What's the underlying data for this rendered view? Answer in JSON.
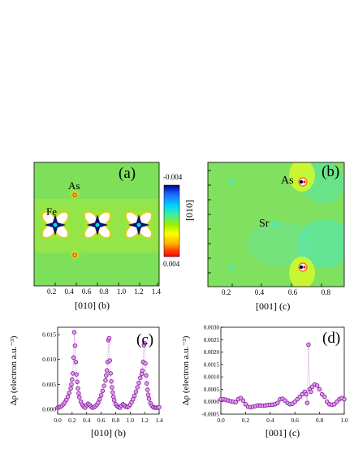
{
  "panel_a": {
    "letter": "(a)",
    "xlabel": "[010] (b)",
    "xticks": [
      "0.2",
      "0.4",
      "0.6",
      "0.8",
      "1.0",
      "1.2",
      "1.4"
    ],
    "atom_labels": [
      "As",
      "Fe"
    ],
    "colorbar": {
      "top_label": "-0.004",
      "bottom_label": "0.004",
      "colors": [
        "#00008b",
        "#2060ff",
        "#00d0ff",
        "#40f0a0",
        "#9af000",
        "#ffff00",
        "#ffb000",
        "#ff4000",
        "#ff0000"
      ]
    }
  },
  "panel_b": {
    "letter": "(b)",
    "xlabel": "[001]  (c)",
    "ylabel": "[010]",
    "xticks": [
      "0.2",
      "0.4",
      "0.6",
      "0.8"
    ],
    "atom_labels": [
      "As",
      "Sr"
    ]
  },
  "chart_data": [
    {
      "type": "scatter",
      "panel": "(c)",
      "xlabel": "[010] (b)",
      "ylabel": "Δρ (electron a.u.⁻³)",
      "xlim": [
        0.0,
        1.4
      ],
      "ylim": [
        -0.001,
        0.0165
      ],
      "xticks": [
        "0.0",
        "0.2",
        "0.4",
        "0.6",
        "0.8",
        "1.0",
        "1.2",
        "1.4"
      ],
      "yticks": [
        "0.000",
        "0.005",
        "0.010",
        "0.015"
      ],
      "x": [
        0.0,
        0.02,
        0.04,
        0.06,
        0.08,
        0.1,
        0.12,
        0.14,
        0.16,
        0.18,
        0.19,
        0.2,
        0.21,
        0.22,
        0.23,
        0.24,
        0.25,
        0.26,
        0.27,
        0.28,
        0.29,
        0.3,
        0.32,
        0.34,
        0.36,
        0.38,
        0.4,
        0.42,
        0.44,
        0.46,
        0.48,
        0.5,
        0.52,
        0.54,
        0.56,
        0.58,
        0.6,
        0.62,
        0.64,
        0.66,
        0.67,
        0.68,
        0.69,
        0.7,
        0.71,
        0.72,
        0.73,
        0.74,
        0.75,
        0.76,
        0.77,
        0.78,
        0.8,
        0.82,
        0.84,
        0.86,
        0.88,
        0.9,
        0.92,
        0.94,
        0.96,
        0.98,
        1.0,
        1.02,
        1.04,
        1.06,
        1.08,
        1.1,
        1.12,
        1.14,
        1.16,
        1.17,
        1.18,
        1.19,
        1.2,
        1.21,
        1.22,
        1.23,
        1.24,
        1.25,
        1.26,
        1.28,
        1.3,
        1.32,
        1.34,
        1.36,
        1.38,
        1.4
      ],
      "y": [
        0.0003,
        0.0004,
        0.0005,
        0.0007,
        0.001,
        0.0014,
        0.0019,
        0.0025,
        0.0033,
        0.0042,
        0.005,
        0.006,
        0.0072,
        0.0104,
        0.0155,
        0.0128,
        0.0095,
        0.007,
        0.0055,
        0.0042,
        0.0032,
        0.0024,
        0.0015,
        0.0009,
        0.0005,
        0.0003,
        0.0008,
        0.0011,
        0.0009,
        0.0005,
        0.0003,
        0.0004,
        0.0006,
        0.0009,
        0.0013,
        0.002,
        0.0028,
        0.0037,
        0.0047,
        0.0058,
        0.0068,
        0.0078,
        0.0095,
        0.0139,
        0.0143,
        0.0098,
        0.0072,
        0.0056,
        0.0044,
        0.0034,
        0.0025,
        0.0018,
        0.001,
        0.0006,
        0.0004,
        0.0003,
        0.0007,
        0.001,
        0.0008,
        0.0005,
        0.0004,
        0.0006,
        0.0009,
        0.0014,
        0.002,
        0.0027,
        0.0035,
        0.0044,
        0.0053,
        0.0063,
        0.0071,
        0.0078,
        0.0095,
        0.0129,
        0.0133,
        0.0092,
        0.0068,
        0.0052,
        0.0039,
        0.0029,
        0.0021,
        0.0012,
        0.0007,
        0.0004,
        0.0003,
        0.0003,
        0.0003,
        0.0004
      ],
      "color": "#8b1fa0"
    },
    {
      "type": "scatter",
      "panel": "(d)",
      "xlabel": "[001]  (c)",
      "ylabel": "Δρ (electron a.u.⁻³)",
      "xlim": [
        0.0,
        1.0
      ],
      "ylim": [
        -0.0005,
        0.003
      ],
      "xticks": [
        "0.0",
        "0.2",
        "0.4",
        "0.6",
        "0.8",
        "1.0"
      ],
      "yticks": [
        "-0.0005",
        "0.0000",
        "0.0005",
        "0.0010",
        "0.0015",
        "0.0020",
        "0.0025",
        "0.0030"
      ],
      "x": [
        0.0,
        0.02,
        0.04,
        0.06,
        0.08,
        0.1,
        0.12,
        0.14,
        0.16,
        0.18,
        0.2,
        0.22,
        0.24,
        0.26,
        0.28,
        0.3,
        0.32,
        0.34,
        0.36,
        0.38,
        0.4,
        0.42,
        0.44,
        0.46,
        0.48,
        0.5,
        0.52,
        0.54,
        0.56,
        0.58,
        0.6,
        0.62,
        0.64,
        0.66,
        0.68,
        0.69,
        0.7,
        0.71,
        0.72,
        0.73,
        0.74,
        0.76,
        0.78,
        0.8,
        0.82,
        0.84,
        0.86,
        0.88,
        0.9,
        0.92,
        0.94,
        0.96,
        0.98,
        1.0
      ],
      "y": [
        0.0001,
        0.0001,
        8e-05,
        5e-05,
        2e-05,
        0.0,
        -2e-05,
        0.0001,
        0.00015,
        5e-05,
        -0.0001,
        -0.0002,
        -0.00022,
        -0.0002,
        -0.00018,
        -0.00015,
        -0.00015,
        -0.00016,
        -0.00015,
        -0.00013,
        -0.00012,
        -0.00012,
        -0.0001,
        -5e-05,
        0.0001,
        0.00012,
        5e-05,
        -5e-05,
        -0.0001,
        -8e-05,
        0.0,
        0.0001,
        0.0002,
        0.0003,
        0.0004,
        0.0003,
        -5e-05,
        0.0023,
        0.0005,
        0.0004,
        0.0006,
        0.0007,
        0.00065,
        0.0005,
        0.0003,
        0.0002,
        0.0,
        -0.0001,
        -0.00012,
        -0.0001,
        0.0,
        0.0001,
        0.00015,
        0.0001
      ],
      "color": "#8b1fa0"
    }
  ]
}
